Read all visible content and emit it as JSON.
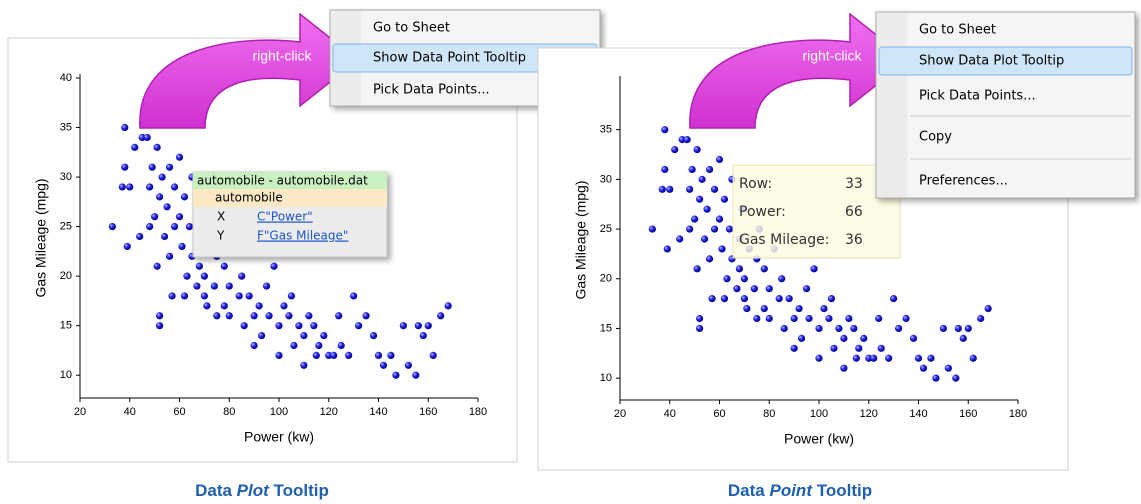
{
  "panels": [
    {
      "chart": {
        "type": "scatter",
        "x_label": "Power (kw)",
        "y_label": "Gas Mileage (mpg)",
        "xlim": [
          20,
          180
        ],
        "ylim": [
          7.7,
          40
        ],
        "xticks": [
          20,
          40,
          60,
          80,
          100,
          120,
          140,
          160,
          180
        ],
        "yticks": [
          10,
          15,
          20,
          25,
          30,
          35,
          40
        ],
        "color": "#1a1ae6",
        "x": [
          33,
          37,
          38,
          38,
          39,
          40,
          42,
          44,
          45,
          47,
          48,
          48,
          49,
          50,
          50,
          51,
          51,
          52,
          52,
          52,
          53,
          54,
          55,
          56,
          56,
          57,
          58,
          58,
          60,
          60,
          61,
          62,
          62,
          63,
          64,
          65,
          65,
          66,
          67,
          68,
          68,
          69,
          70,
          70,
          71,
          72,
          74,
          75,
          75,
          76,
          78,
          78,
          80,
          80,
          82,
          84,
          85,
          86,
          88,
          90,
          90,
          92,
          93,
          95,
          96,
          98,
          100,
          100,
          102,
          104,
          105,
          106,
          108,
          110,
          110,
          112,
          114,
          115,
          116,
          118,
          120,
          122,
          124,
          125,
          128,
          130,
          132,
          135,
          138,
          140,
          142,
          145,
          147,
          150,
          152,
          155,
          156,
          158,
          160,
          162,
          165,
          168
        ],
        "y": [
          25,
          29,
          31,
          35,
          23,
          29,
          33,
          24,
          34,
          34,
          29,
          25,
          31,
          36,
          26,
          33,
          21,
          16,
          15,
          28,
          30,
          24,
          27,
          31,
          22,
          18,
          25,
          29,
          26,
          32,
          23,
          18,
          28,
          20,
          25,
          30,
          22,
          36,
          19,
          24,
          21,
          27,
          18,
          20,
          17,
          23,
          19,
          16,
          22,
          25,
          21,
          17,
          19,
          16,
          23,
          18,
          20,
          15,
          18,
          13,
          16,
          17,
          14,
          19,
          16,
          21,
          15,
          12,
          17,
          16,
          18,
          13,
          15,
          11,
          14,
          16,
          15,
          12,
          13,
          14,
          12,
          12,
          16,
          13,
          12,
          18,
          15,
          16,
          14,
          12,
          11,
          12,
          10,
          15,
          11,
          10,
          15,
          14,
          15,
          12,
          16,
          17
        ]
      },
      "annotation": "right-click",
      "menu": {
        "items": [
          "Go to Sheet",
          "Show Data Point Tooltip",
          "Pick Data Points..."
        ],
        "highlighted": 1
      },
      "tooltip": {
        "title": "automobile - automobile.dat",
        "name": "automobile",
        "rows": [
          [
            "X",
            "C\"Power\""
          ],
          [
            "Y",
            "F\"Gas Mileage\""
          ]
        ]
      },
      "caption": [
        "Data ",
        "Plot",
        " Tooltip"
      ]
    },
    {
      "chart": {
        "type": "scatter",
        "x_label": "Power (kw)",
        "y_label": "Gas Mileage (mpg)",
        "xlim": [
          20,
          180
        ],
        "ylim": [
          7.8,
          40
        ],
        "xticks": [
          20,
          40,
          60,
          80,
          100,
          120,
          140,
          160,
          180
        ],
        "yticks": [
          10,
          15,
          20,
          25,
          30,
          35
        ],
        "color": "#1a1ae6",
        "x": [
          33,
          37,
          38,
          38,
          39,
          40,
          42,
          44,
          45,
          47,
          48,
          48,
          49,
          50,
          50,
          51,
          51,
          52,
          52,
          52,
          53,
          54,
          55,
          56,
          56,
          57,
          58,
          58,
          60,
          60,
          61,
          62,
          62,
          63,
          64,
          65,
          65,
          66,
          67,
          68,
          68,
          69,
          70,
          70,
          71,
          72,
          74,
          75,
          75,
          76,
          78,
          78,
          80,
          80,
          82,
          84,
          85,
          86,
          88,
          90,
          90,
          92,
          93,
          95,
          96,
          98,
          100,
          100,
          102,
          104,
          105,
          106,
          108,
          110,
          110,
          112,
          114,
          115,
          116,
          118,
          120,
          122,
          124,
          125,
          128,
          130,
          132,
          135,
          138,
          140,
          142,
          145,
          147,
          150,
          152,
          155,
          156,
          158,
          160,
          162,
          165,
          168
        ],
        "y": [
          25,
          29,
          31,
          35,
          23,
          29,
          33,
          24,
          34,
          34,
          29,
          25,
          31,
          36,
          26,
          33,
          21,
          16,
          15,
          28,
          30,
          24,
          27,
          31,
          22,
          18,
          25,
          29,
          26,
          32,
          23,
          18,
          28,
          20,
          25,
          30,
          22,
          36,
          19,
          24,
          21,
          27,
          18,
          20,
          17,
          23,
          19,
          16,
          22,
          25,
          21,
          17,
          19,
          16,
          23,
          18,
          20,
          15,
          18,
          13,
          16,
          17,
          14,
          19,
          16,
          21,
          15,
          12,
          17,
          16,
          18,
          13,
          15,
          11,
          14,
          16,
          15,
          12,
          13,
          14,
          12,
          12,
          16,
          13,
          12,
          18,
          15,
          16,
          14,
          12,
          11,
          12,
          10,
          15,
          11,
          10,
          15,
          14,
          15,
          12,
          16,
          17
        ]
      },
      "annotation": "right-click",
      "menu": {
        "items": [
          "Go to Sheet",
          "Show Data Plot Tooltip",
          "Pick Data Points...",
          "Copy",
          "Preferences..."
        ],
        "highlighted": 1
      },
      "tooltip": {
        "rows": [
          [
            "Row:",
            33
          ],
          [
            "Power:",
            66
          ],
          [
            "Gas Mileage:",
            36
          ]
        ]
      },
      "caption": [
        "Data ",
        "Point",
        " Tooltip"
      ]
    }
  ]
}
